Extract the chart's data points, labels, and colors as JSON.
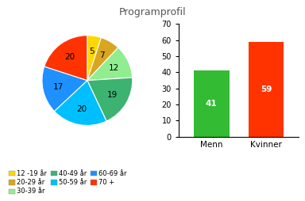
{
  "title": "Programprofil",
  "pie_values": [
    5,
    7,
    12,
    19,
    20,
    17,
    20
  ],
  "pie_colors": [
    "#FFD700",
    "#DAA520",
    "#90EE90",
    "#3CB371",
    "#00BFFF",
    "#1E90FF",
    "#FF3300"
  ],
  "pie_labels_display": [
    "5",
    "7",
    "12",
    "19",
    "20",
    "17",
    "20"
  ],
  "bar_categories": [
    "Menn",
    "Kvinner"
  ],
  "bar_values": [
    41,
    59
  ],
  "bar_colors": [
    "#33BB33",
    "#FF3300"
  ],
  "bar_label_values": [
    "41",
    "59"
  ],
  "ylim": [
    0,
    70
  ],
  "yticks": [
    0,
    10,
    20,
    30,
    40,
    50,
    60,
    70
  ],
  "legend_labels": [
    "12 -19 år",
    "20-29 år",
    "30-39 år",
    "40-49 år",
    "50-59 år",
    "60-69 år",
    "70 +"
  ],
  "legend_colors": [
    "#FFD700",
    "#DAA520",
    "#90EE90",
    "#3CB371",
    "#00BFFF",
    "#1E90FF",
    "#FF3300"
  ],
  "legend_ncol": 3,
  "bg_color": "#FFFFFF",
  "title_color": "#555555",
  "title_fontsize": 9,
  "bar_label_fontsize": 7.5,
  "bar_xtick_fontsize": 7.5,
  "bar_ytick_fontsize": 7,
  "legend_fontsize": 6.0,
  "pie_label_fontsize": 7.5
}
